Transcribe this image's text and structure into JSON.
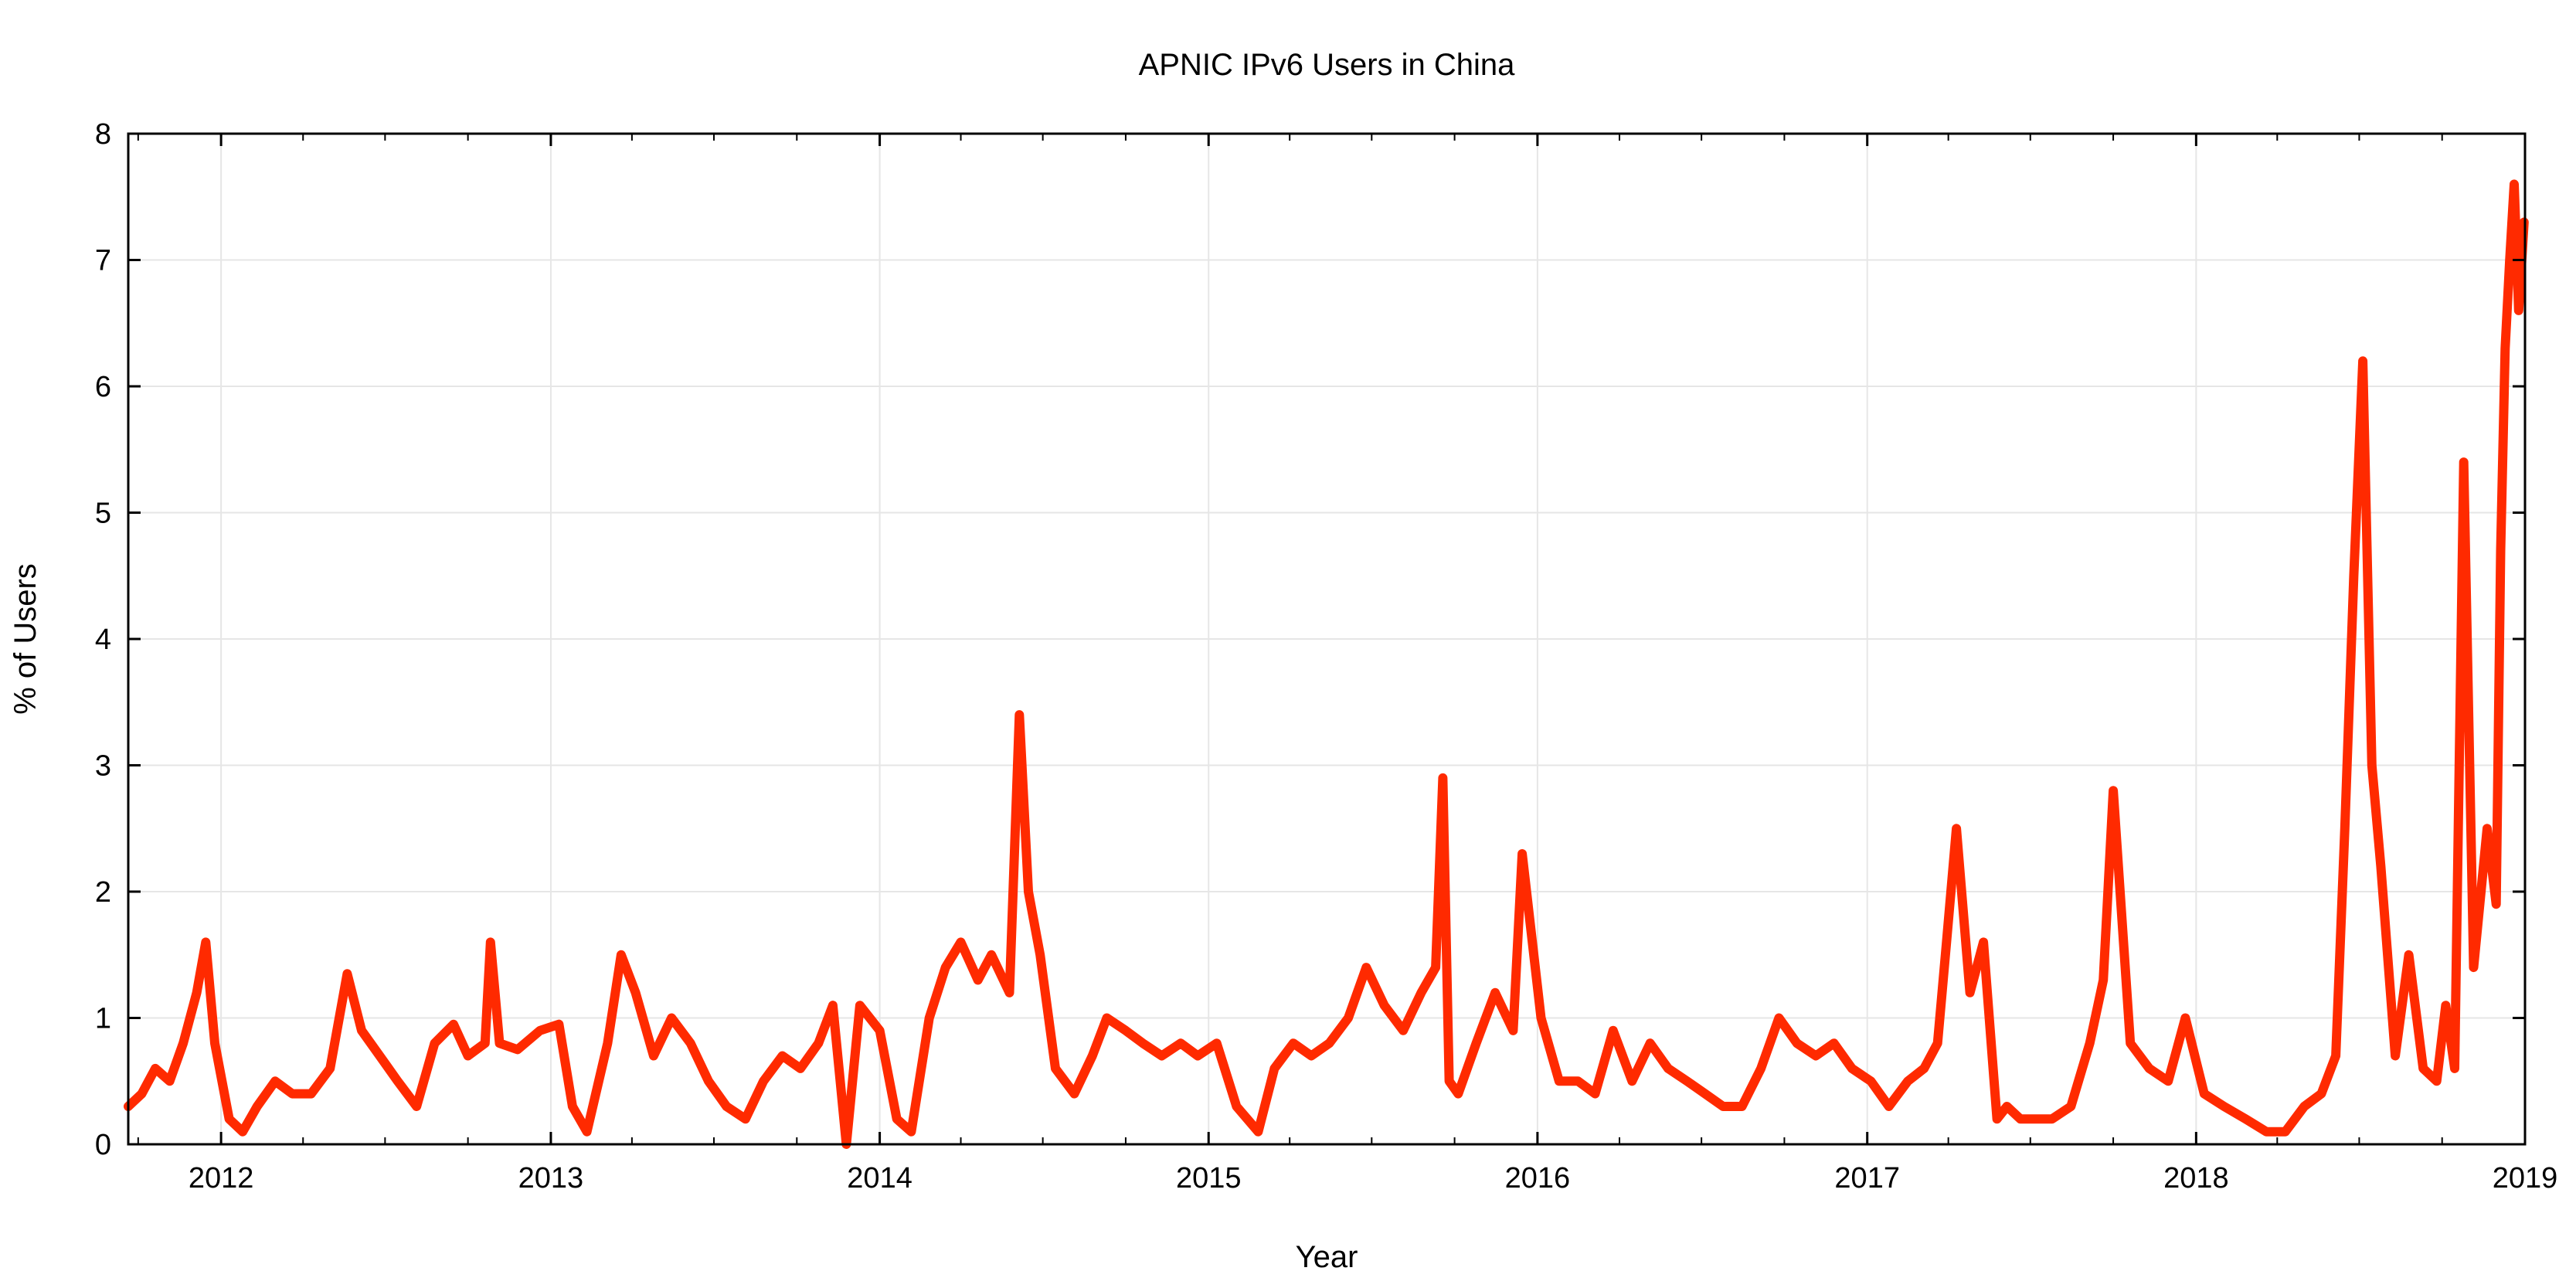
{
  "chart_data": {
    "type": "line",
    "title": "APNIC IPv6 Users in China",
    "xlabel": "Year",
    "ylabel": "% of Users",
    "xlim": [
      "2011-09-20",
      "2019-01-01"
    ],
    "ylim": [
      0,
      8
    ],
    "x_ticks": [
      "2012",
      "2013",
      "2014",
      "2015",
      "2016",
      "2017",
      "2018",
      "2019"
    ],
    "y_ticks": [
      "0",
      "1",
      "2",
      "3",
      "4",
      "5",
      "6",
      "7",
      "8"
    ],
    "grid": true,
    "legend": "none",
    "line_color": "#ff2a00",
    "series": [
      {
        "x": [
          "2011-09-20",
          "2011-10-05",
          "2011-10-20",
          "2011-11-05",
          "2011-11-20",
          "2011-12-05",
          "2011-12-15",
          "2011-12-25",
          "2012-01-10",
          "2012-01-25",
          "2012-02-10",
          "2012-03-01",
          "2012-03-20",
          "2012-04-10",
          "2012-05-01",
          "2012-05-20",
          "2012-06-05",
          "2012-06-25",
          "2012-07-15",
          "2012-08-05",
          "2012-08-25",
          "2012-09-15",
          "2012-10-01",
          "2012-10-20",
          "2012-10-26",
          "2012-11-05",
          "2012-11-25",
          "2012-12-20",
          "2013-01-10",
          "2013-01-25",
          "2013-02-10",
          "2013-03-05",
          "2013-03-20",
          "2013-04-05",
          "2013-04-25",
          "2013-05-15",
          "2013-06-05",
          "2013-06-25",
          "2013-07-15",
          "2013-08-05",
          "2013-08-25",
          "2013-09-15",
          "2013-10-05",
          "2013-10-25",
          "2013-11-10",
          "2013-11-25",
          "2013-12-10",
          "2014-01-01",
          "2014-01-20",
          "2014-02-05",
          "2014-02-25",
          "2014-03-15",
          "2014-04-01",
          "2014-04-20",
          "2014-05-05",
          "2014-05-25",
          "2014-06-05",
          "2014-06-15",
          "2014-06-28",
          "2014-07-15",
          "2014-08-05",
          "2014-08-25",
          "2014-09-10",
          "2014-10-01",
          "2014-10-20",
          "2014-11-10",
          "2014-12-01",
          "2014-12-20",
          "2015-01-10",
          "2015-02-01",
          "2015-02-25",
          "2015-03-15",
          "2015-04-05",
          "2015-04-25",
          "2015-05-15",
          "2015-06-05",
          "2015-06-25",
          "2015-07-15",
          "2015-08-05",
          "2015-08-25",
          "2015-09-10",
          "2015-09-18",
          "2015-09-25",
          "2015-10-05",
          "2015-10-25",
          "2015-11-15",
          "2015-12-05",
          "2015-12-15",
          "2016-01-05",
          "2016-01-25",
          "2016-02-15",
          "2016-03-05",
          "2016-03-25",
          "2016-04-15",
          "2016-05-05",
          "2016-05-25",
          "2016-06-15",
          "2016-07-05",
          "2016-07-25",
          "2016-08-15",
          "2016-09-05",
          "2016-09-25",
          "2016-10-15",
          "2016-11-05",
          "2016-11-25",
          "2016-12-15",
          "2017-01-05",
          "2017-01-25",
          "2017-02-15",
          "2017-03-05",
          "2017-03-20",
          "2017-03-30",
          "2017-04-10",
          "2017-04-25",
          "2017-05-10",
          "2017-05-25",
          "2017-06-05",
          "2017-06-20",
          "2017-07-05",
          "2017-07-25",
          "2017-08-15",
          "2017-09-05",
          "2017-09-20",
          "2017-10-01",
          "2017-10-20",
          "2017-11-10",
          "2017-12-01",
          "2017-12-20",
          "2018-01-10",
          "2018-02-01",
          "2018-02-25",
          "2018-03-20",
          "2018-04-10",
          "2018-05-01",
          "2018-05-20",
          "2018-06-05",
          "2018-06-15",
          "2018-06-25",
          "2018-07-05",
          "2018-07-15",
          "2018-07-25",
          "2018-08-10",
          "2018-08-25",
          "2018-09-10",
          "2018-09-25",
          "2018-10-05",
          "2018-10-15",
          "2018-10-25",
          "2018-11-05",
          "2018-11-20",
          "2018-11-30",
          "2018-12-05",
          "2018-12-10",
          "2018-12-15",
          "2018-12-20",
          "2018-12-25",
          "2018-12-31"
        ],
        "values": [
          0.3,
          0.4,
          0.6,
          0.5,
          0.8,
          1.2,
          1.6,
          0.8,
          0.2,
          0.1,
          0.3,
          0.5,
          0.4,
          0.4,
          0.6,
          1.35,
          0.9,
          0.7,
          0.5,
          0.3,
          0.8,
          0.95,
          0.7,
          0.8,
          1.6,
          0.8,
          0.75,
          0.9,
          0.95,
          0.3,
          0.1,
          0.8,
          1.5,
          1.2,
          0.7,
          1.0,
          0.8,
          0.5,
          0.3,
          0.2,
          0.5,
          0.7,
          0.6,
          0.8,
          1.1,
          0.0,
          1.1,
          0.9,
          0.2,
          0.1,
          1.0,
          1.4,
          1.6,
          1.3,
          1.5,
          1.2,
          3.4,
          2.0,
          1.5,
          0.6,
          0.4,
          0.7,
          1.0,
          0.9,
          0.8,
          0.7,
          0.8,
          0.7,
          0.8,
          0.3,
          0.1,
          0.6,
          0.8,
          0.7,
          0.8,
          1.0,
          1.4,
          1.1,
          0.9,
          1.2,
          1.4,
          2.9,
          0.5,
          0.4,
          0.8,
          1.2,
          0.9,
          2.3,
          1.0,
          0.5,
          0.5,
          0.4,
          0.9,
          0.5,
          0.8,
          0.6,
          0.5,
          0.4,
          0.3,
          0.3,
          0.6,
          1.0,
          0.8,
          0.7,
          0.8,
          0.6,
          0.5,
          0.3,
          0.5,
          0.6,
          0.8,
          1.6,
          2.5,
          1.2,
          1.6,
          0.2,
          0.3,
          0.2,
          0.2,
          0.2,
          0.3,
          0.8,
          1.3,
          2.8,
          0.8,
          0.6,
          0.5,
          1.0,
          0.4,
          0.3,
          0.2,
          0.1,
          0.1,
          0.3,
          0.4,
          0.7,
          2.5,
          4.5,
          6.2,
          3.0,
          2.2,
          0.7,
          1.5,
          0.6,
          0.5,
          1.1,
          0.6,
          5.4,
          1.4,
          2.5,
          1.9,
          4.7,
          6.3,
          7.0,
          7.6,
          6.6,
          7.3
        ]
      }
    ]
  }
}
